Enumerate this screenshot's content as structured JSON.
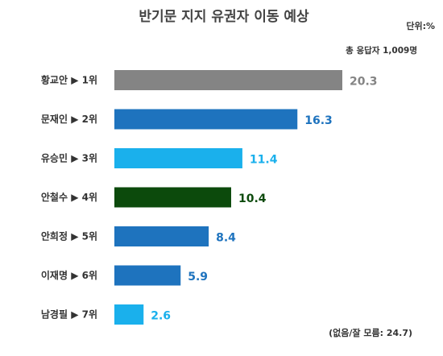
{
  "chart_data": {
    "type": "bar",
    "orientation": "horizontal",
    "title": "반기문 지지 유권자 이동 예상",
    "unit_label": "단위:%",
    "respondents_label": "총 응답자 1,009명",
    "footnote": "(없음/잘 모름: 24.7)",
    "categories": [
      "황교안 ▶ 1위",
      "문재인 ▶ 2위",
      "유승민 ▶ 3위",
      "안철수 ▶ 4위",
      "안희정 ▶ 5위",
      "이재명 ▶ 6위",
      "남경필 ▶ 7위"
    ],
    "values": [
      20.3,
      16.3,
      11.4,
      10.4,
      8.4,
      5.9,
      2.6
    ],
    "value_labels": [
      "20.3",
      "16.3",
      "11.4",
      "10.4",
      "8.4",
      "5.9",
      "2.6"
    ],
    "bar_colors": [
      "#848484",
      "#1e73be",
      "#1ab0ec",
      "#0c4a0c",
      "#1e73be",
      "#1e73be",
      "#1ab0ec"
    ],
    "label_colors": [
      "#848484",
      "#1e73be",
      "#1ab0ec",
      "#0c4a0c",
      "#1e73be",
      "#1e73be",
      "#1ab0ec"
    ],
    "xlim": [
      0,
      20.3
    ],
    "grid": false,
    "legend": "none"
  }
}
